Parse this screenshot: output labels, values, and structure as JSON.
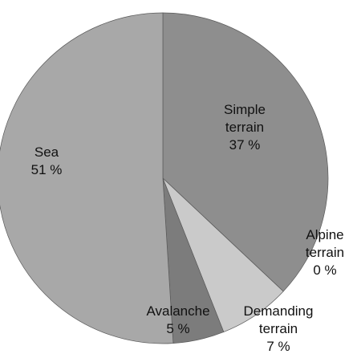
{
  "chart_data": {
    "type": "pie",
    "categories": [
      "Simple terrain",
      "Alpine terrain",
      "Demanding terrain",
      "Avalanche",
      "Sea"
    ],
    "values": [
      37,
      0,
      7,
      5,
      51
    ],
    "value_labels": [
      "37 %",
      "0 %",
      "7 %",
      "5 %",
      "51 %"
    ],
    "colors": [
      "#8e8e8e",
      "#9a9a9a",
      "#cacaca",
      "#7c7c7c",
      "#a8a8a8"
    ]
  }
}
